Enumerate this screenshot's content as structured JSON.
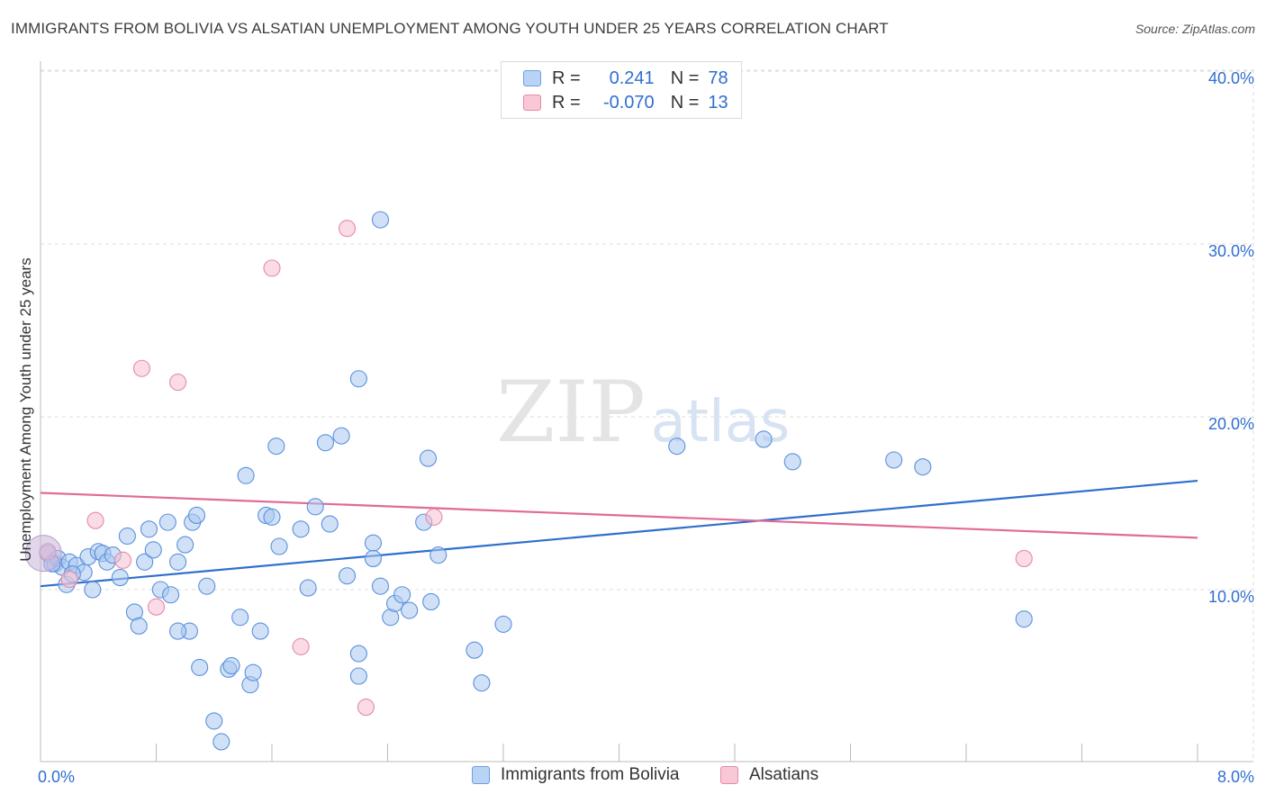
{
  "title": "IMMIGRANTS FROM BOLIVIA VS ALSATIAN UNEMPLOYMENT AMONG YOUTH UNDER 25 YEARS CORRELATION CHART",
  "source": "Source: ZipAtlas.com",
  "watermark": {
    "zip": "ZIP",
    "atlas": "atlas"
  },
  "legend": {
    "rows": [
      {
        "r_label": "R =",
        "r_value": "0.241",
        "n_label": "N =",
        "n_value": "78",
        "fill": "#b9d3f5",
        "stroke": "#6b9ee6"
      },
      {
        "r_label": "R =",
        "r_value": "-0.070",
        "n_label": "N =",
        "n_value": "13",
        "fill": "#f8c8d6",
        "stroke": "#e989a8"
      }
    ]
  },
  "bottom_legend": [
    {
      "label": "Immigrants from Bolivia",
      "fill": "#b9d3f5",
      "stroke": "#6b9ee6"
    },
    {
      "label": "Alsatians",
      "fill": "#f8c8d6",
      "stroke": "#e989a8"
    }
  ],
  "chart_data": {
    "type": "scatter",
    "title": "IMMIGRANTS FROM BOLIVIA VS ALSATIAN UNEMPLOYMENT AMONG YOUTH UNDER 25 YEARS CORRELATION CHART",
    "xlabel": "",
    "ylabel": "Unemployment Among Youth under 25 years",
    "xlim": [
      0,
      8
    ],
    "ylim": [
      0,
      42
    ],
    "x_tick_labels": [
      {
        "value": 0,
        "label": "0.0%"
      },
      {
        "value": 8,
        "label": "8.0%"
      }
    ],
    "y_tick_labels": [
      {
        "value": 10,
        "label": "10.0%"
      },
      {
        "value": 20,
        "label": "20.0%"
      },
      {
        "value": 30,
        "label": "30.0%"
      },
      {
        "value": 40,
        "label": "40.0%"
      }
    ],
    "colors": {
      "blue_fill": "#a9c8f0",
      "blue_stroke": "#5b90dc",
      "blue_line": "#2f6fcf",
      "pink_fill": "#f7c0d1",
      "pink_stroke": "#e48aa8",
      "pink_line": "#e06b96",
      "axis_label": "#2f6fcf",
      "grid": "#dddddd"
    },
    "series": [
      {
        "name": "Immigrants from Bolivia",
        "R": 0.241,
        "N": 78,
        "trend": {
          "x": [
            0,
            8
          ],
          "y": [
            10.2,
            16.3
          ]
        },
        "points": [
          [
            0.05,
            12.1
          ],
          [
            0.1,
            11.5
          ],
          [
            0.12,
            11.8
          ],
          [
            0.15,
            11.3
          ],
          [
            0.18,
            10.3
          ],
          [
            0.2,
            11.6
          ],
          [
            0.25,
            11.4
          ],
          [
            0.3,
            11.0
          ],
          [
            0.33,
            11.9
          ],
          [
            0.36,
            10.0
          ],
          [
            0.4,
            12.2
          ],
          [
            0.43,
            12.1
          ],
          [
            0.46,
            11.6
          ],
          [
            0.5,
            12.0
          ],
          [
            0.55,
            10.7
          ],
          [
            0.6,
            13.1
          ],
          [
            0.65,
            8.7
          ],
          [
            0.68,
            7.9
          ],
          [
            0.72,
            11.6
          ],
          [
            0.75,
            13.5
          ],
          [
            0.78,
            12.3
          ],
          [
            0.83,
            10.0
          ],
          [
            0.88,
            13.9
          ],
          [
            0.9,
            9.7
          ],
          [
            0.95,
            11.6
          ],
          [
            1.0,
            12.6
          ],
          [
            1.03,
            7.6
          ],
          [
            1.05,
            13.9
          ],
          [
            1.08,
            14.3
          ],
          [
            1.1,
            5.5
          ],
          [
            1.15,
            10.2
          ],
          [
            1.2,
            2.4
          ],
          [
            1.25,
            1.2
          ],
          [
            1.3,
            5.4
          ],
          [
            1.32,
            5.6
          ],
          [
            1.38,
            8.4
          ],
          [
            1.42,
            16.6
          ],
          [
            1.45,
            4.5
          ],
          [
            1.47,
            5.2
          ],
          [
            1.52,
            7.6
          ],
          [
            1.56,
            14.3
          ],
          [
            1.6,
            14.2
          ],
          [
            1.63,
            18.3
          ],
          [
            1.65,
            12.5
          ],
          [
            1.8,
            13.5
          ],
          [
            1.85,
            10.1
          ],
          [
            1.9,
            14.8
          ],
          [
            1.97,
            18.5
          ],
          [
            2.0,
            13.8
          ],
          [
            2.08,
            18.9
          ],
          [
            2.12,
            10.8
          ],
          [
            2.2,
            22.2
          ],
          [
            2.2,
            5.0
          ],
          [
            2.2,
            6.3
          ],
          [
            2.3,
            12.7
          ],
          [
            2.35,
            31.4
          ],
          [
            2.3,
            11.8
          ],
          [
            2.35,
            10.2
          ],
          [
            2.42,
            8.4
          ],
          [
            2.45,
            9.2
          ],
          [
            2.5,
            9.7
          ],
          [
            2.55,
            8.8
          ],
          [
            2.65,
            13.9
          ],
          [
            2.68,
            17.6
          ],
          [
            2.7,
            9.3
          ],
          [
            2.75,
            12.0
          ],
          [
            3.0,
            6.5
          ],
          [
            3.05,
            4.6
          ],
          [
            3.2,
            8.0
          ],
          [
            4.4,
            18.3
          ],
          [
            5.0,
            18.7
          ],
          [
            5.2,
            17.4
          ],
          [
            5.9,
            17.5
          ],
          [
            6.1,
            17.1
          ],
          [
            6.8,
            8.3
          ],
          [
            0.08,
            11.5
          ],
          [
            0.22,
            10.9
          ],
          [
            0.95,
            7.6
          ]
        ]
      },
      {
        "name": "Alsatians",
        "R": -0.07,
        "N": 13,
        "trend": {
          "x": [
            0,
            8
          ],
          "y": [
            15.6,
            13.0
          ]
        },
        "points": [
          [
            0.05,
            12.2
          ],
          [
            0.38,
            14.0
          ],
          [
            0.57,
            11.7
          ],
          [
            0.7,
            22.8
          ],
          [
            0.8,
            9.0
          ],
          [
            0.95,
            22.0
          ],
          [
            1.6,
            28.6
          ],
          [
            1.8,
            6.7
          ],
          [
            2.12,
            30.9
          ],
          [
            2.25,
            3.2
          ],
          [
            2.72,
            14.2
          ],
          [
            6.8,
            11.8
          ],
          [
            0.2,
            10.6
          ]
        ]
      }
    ]
  }
}
